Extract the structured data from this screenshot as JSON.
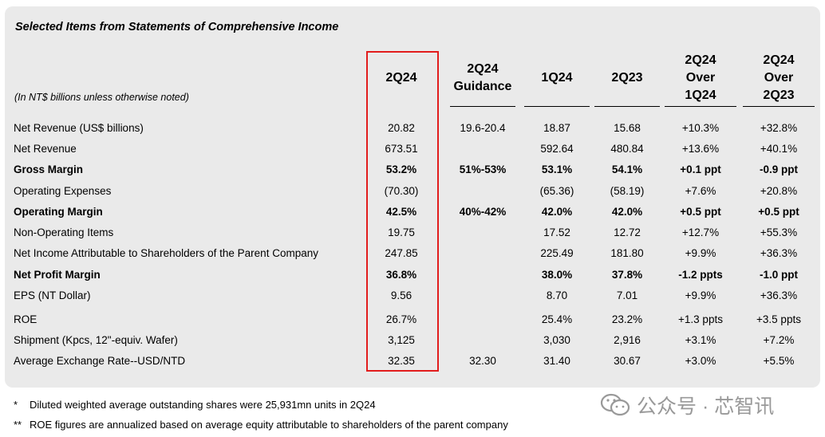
{
  "title": "Selected Items from Statements of Comprehensive Income",
  "unit_note": "(In NT$ billions unless otherwise noted)",
  "columns": [
    {
      "header": "2Q24"
    },
    {
      "header": "2Q24\nGuidance"
    },
    {
      "header": "1Q24"
    },
    {
      "header": "2Q23"
    },
    {
      "header": "2Q24\nOver\n1Q24"
    },
    {
      "header": "2Q24\nOver\n2Q23"
    }
  ],
  "rows": [
    {
      "label": "Net Revenue (US$ billions)",
      "bold": false,
      "values": [
        "20.82",
        "19.6-20.4",
        "18.87",
        "15.68",
        "+10.3%",
        "+32.8%"
      ]
    },
    {
      "label": "Net Revenue",
      "bold": false,
      "values": [
        "673.51",
        "",
        "592.64",
        "480.84",
        "+13.6%",
        "+40.1%"
      ]
    },
    {
      "label": "Gross Margin",
      "bold": true,
      "values": [
        "53.2%",
        "51%-53%",
        "53.1%",
        "54.1%",
        "+0.1 ppt",
        "-0.9 ppt"
      ]
    },
    {
      "label": "Operating Expenses",
      "bold": false,
      "values": [
        "(70.30)",
        "",
        "(65.36)",
        "(58.19)",
        "+7.6%",
        "+20.8%"
      ]
    },
    {
      "label": "Operating Margin",
      "bold": true,
      "values": [
        "42.5%",
        "40%-42%",
        "42.0%",
        "42.0%",
        "+0.5 ppt",
        "+0.5 ppt"
      ]
    },
    {
      "label": "Non-Operating Items",
      "bold": false,
      "values": [
        "19.75",
        "",
        "17.52",
        "12.72",
        "+12.7%",
        "+55.3%"
      ]
    },
    {
      "label": "Net Income Attributable to Shareholders of the Parent Company",
      "bold": false,
      "values": [
        "247.85",
        "",
        "225.49",
        "181.80",
        "+9.9%",
        "+36.3%"
      ]
    },
    {
      "label": "Net Profit Margin",
      "bold": true,
      "values": [
        "36.8%",
        "",
        "38.0%",
        "37.8%",
        "-1.2 ppts",
        "-1.0 ppt"
      ]
    },
    {
      "label": "EPS (NT Dollar)",
      "bold": false,
      "values": [
        "9.56",
        "",
        "8.70",
        "7.01",
        "+9.9%",
        "+36.3%"
      ]
    },
    {
      "label": "ROE",
      "bold": false,
      "values": [
        "26.7%",
        "",
        "25.4%",
        "23.2%",
        "+1.3 ppts",
        "+3.5 ppts"
      ]
    },
    {
      "label": "Shipment (Kpcs, 12\"-equiv. Wafer)",
      "bold": false,
      "values": [
        "3,125",
        "",
        "3,030",
        "2,916",
        "+3.1%",
        "+7.2%"
      ]
    },
    {
      "label": "Average Exchange Rate--USD/NTD",
      "bold": false,
      "values": [
        "32.35",
        "32.30",
        "31.40",
        "30.67",
        "+3.0%",
        "+5.5%"
      ]
    }
  ],
  "footnotes": [
    {
      "mark": "*",
      "text": "Diluted weighted average outstanding shares were 25,931mn units in 2Q24"
    },
    {
      "mark": "**",
      "text": "ROE figures are annualized based on average equity attributable to shareholders of the parent company"
    }
  ],
  "watermark": {
    "text": "公众号 · 芯智讯",
    "icon": "wechat-icon"
  },
  "colors": {
    "panel": "#eaeaea",
    "highlight": "#e21d1d"
  }
}
